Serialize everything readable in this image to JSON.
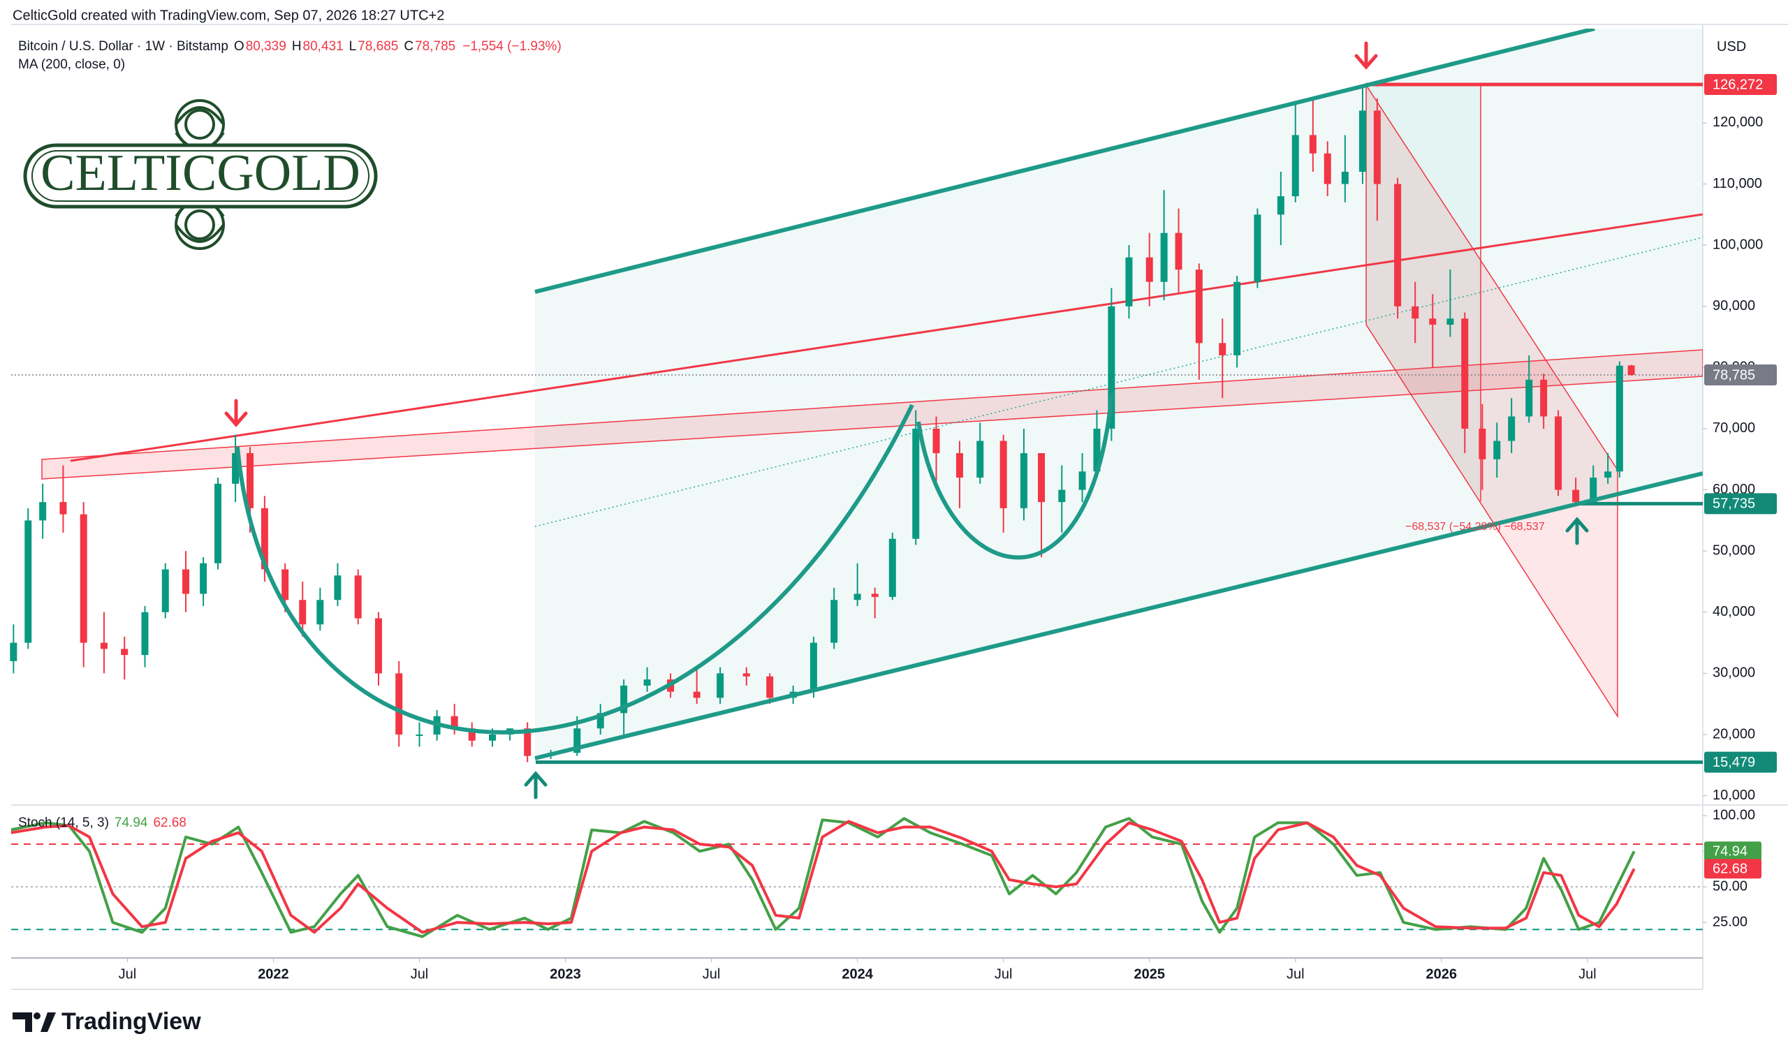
{
  "header": "CelticGold created with TradingView.com, Sep 07, 2026 18:27 UTC+2",
  "logo": "CELTICGOLD",
  "footer": "TradingView",
  "chart_data": [
    {
      "type": "candlestick",
      "symbol_legend": "Bitcoin / U.S. Dollar · 1W · Bitstamp",
      "ohlc_legend": [
        {
          "key": "O",
          "value": "80,339"
        },
        {
          "key": "H",
          "value": "80,431"
        },
        {
          "key": "L",
          "value": "78,685"
        },
        {
          "key": "C",
          "value": "78,785"
        },
        {
          "key": "",
          "value": "−1,554 (−1.93%)"
        }
      ],
      "ma_legend": "MA (200, close, 0)",
      "currency": "USD",
      "annotation": "−68,537 (−54.28%) −68,537",
      "up_color": "#089981",
      "down_color": "#f23645",
      "x": [
        2021.11,
        2021.16,
        2021.21,
        2021.28,
        2021.35,
        2021.42,
        2021.49,
        2021.56,
        2021.63,
        2021.7,
        2021.76,
        2021.81,
        2021.87,
        2021.92,
        2021.97,
        2022.04,
        2022.1,
        2022.16,
        2022.22,
        2022.29,
        2022.36,
        2022.43,
        2022.5,
        2022.56,
        2022.62,
        2022.68,
        2022.75,
        2022.81,
        2022.87,
        2022.95,
        2023.04,
        2023.12,
        2023.2,
        2023.28,
        2023.36,
        2023.45,
        2023.53,
        2023.62,
        2023.7,
        2023.78,
        2023.85,
        2023.92,
        2024.0,
        2024.06,
        2024.12,
        2024.2,
        2024.27,
        2024.35,
        2024.42,
        2024.5,
        2024.57,
        2024.63,
        2024.7,
        2024.77,
        2024.82,
        2024.87,
        2024.93,
        2025.0,
        2025.05,
        2025.1,
        2025.17,
        2025.25,
        2025.3,
        2025.37,
        2025.45,
        2025.5,
        2025.56,
        2025.61,
        2025.67,
        2025.73,
        2025.78,
        2025.85,
        2025.91,
        2025.97,
        2026.03,
        2026.08,
        2026.14,
        2026.19,
        2026.24,
        2026.3,
        2026.35,
        2026.4,
        2026.46,
        2026.52,
        2026.57,
        2026.61,
        2026.65
      ],
      "open": [
        32000,
        35000,
        55000,
        58000,
        56000,
        35000,
        34000,
        33000,
        40000,
        47000,
        43000,
        48000,
        61000,
        66000,
        57000,
        47000,
        42000,
        38000,
        42000,
        46000,
        39000,
        30000,
        20000,
        20000,
        23000,
        21000,
        19000,
        20000,
        21000,
        16500,
        17000,
        21000,
        23500,
        28000,
        29000,
        27000,
        26000,
        30000,
        29500,
        26000,
        27000,
        35000,
        42000,
        43000,
        42500,
        52000,
        70000,
        66000,
        62000,
        68000,
        57000,
        66000,
        58000,
        60000,
        63000,
        70000,
        90000,
        98000,
        94000,
        102000,
        96000,
        84000,
        82000,
        94000,
        105000,
        108000,
        118000,
        115000,
        110000,
        112000,
        122000,
        110000,
        90000,
        88000,
        87000,
        88000,
        70000,
        65000,
        68000,
        72000,
        78000,
        72000,
        60000,
        58000,
        62000,
        63000,
        80339
      ],
      "high": [
        38000,
        57000,
        61000,
        64000,
        58000,
        40000,
        36000,
        41000,
        48000,
        50000,
        49000,
        62000,
        69000,
        67000,
        59000,
        48000,
        45000,
        44000,
        48000,
        47000,
        40000,
        32000,
        22000,
        24000,
        25000,
        22000,
        21000,
        21000,
        22000,
        17500,
        23000,
        25000,
        29000,
        31000,
        30000,
        31000,
        31000,
        31000,
        30000,
        28000,
        36000,
        44000,
        48000,
        44000,
        53000,
        73000,
        72000,
        68000,
        71000,
        69000,
        70000,
        66000,
        64000,
        66000,
        73000,
        93000,
        100000,
        102000,
        109000,
        106000,
        97000,
        88000,
        95000,
        106000,
        112000,
        123000,
        124000,
        117000,
        118000,
        126272,
        124000,
        111000,
        94000,
        92000,
        96000,
        89000,
        74000,
        71000,
        75000,
        82000,
        79000,
        73000,
        62000,
        64000,
        66000,
        81000,
        80431
      ],
      "low": [
        30000,
        34000,
        52000,
        53000,
        31000,
        30000,
        29000,
        31000,
        39000,
        40000,
        41000,
        47000,
        58000,
        53000,
        45000,
        40000,
        36000,
        37000,
        41000,
        38000,
        28000,
        18000,
        18000,
        19000,
        20000,
        18000,
        18000,
        19000,
        15479,
        16000,
        16500,
        20000,
        20000,
        27000,
        26000,
        25000,
        25000,
        28000,
        25000,
        25000,
        26000,
        34000,
        41000,
        39000,
        42000,
        51000,
        60000,
        57000,
        61000,
        53000,
        55000,
        49000,
        53000,
        58000,
        62000,
        68000,
        88000,
        90000,
        91000,
        92000,
        78000,
        75000,
        80000,
        93000,
        100000,
        107000,
        112000,
        108000,
        107000,
        110000,
        104000,
        88000,
        84000,
        80000,
        85000,
        66000,
        60000,
        62000,
        66000,
        71000,
        70000,
        59000,
        57735,
        57800,
        61000,
        62000,
        78685
      ],
      "close": [
        35000,
        55000,
        58000,
        56000,
        35000,
        34000,
        33000,
        40000,
        47000,
        43000,
        48000,
        61000,
        66000,
        57000,
        47000,
        42000,
        38000,
        42000,
        46000,
        39000,
        30000,
        20000,
        20000,
        23000,
        21000,
        19000,
        20000,
        21000,
        16500,
        17000,
        21000,
        23500,
        28000,
        29000,
        27000,
        26000,
        30000,
        29500,
        26000,
        27000,
        35000,
        42000,
        43000,
        42500,
        52000,
        70000,
        66000,
        62000,
        68000,
        57000,
        66000,
        58000,
        60000,
        63000,
        70000,
        90000,
        98000,
        94000,
        102000,
        96000,
        84000,
        82000,
        94000,
        105000,
        108000,
        118000,
        115000,
        110000,
        112000,
        122000,
        110000,
        90000,
        88000,
        87000,
        88000,
        70000,
        65000,
        68000,
        72000,
        78000,
        72000,
        60000,
        58000,
        62000,
        63000,
        80300,
        78785
      ],
      "xlim": [
        2021.102,
        2026.895
      ],
      "xticks": [
        {
          "value": 2021.5,
          "label": "Jul"
        },
        {
          "value": 2022,
          "label": "2022"
        },
        {
          "value": 2022.5,
          "label": "Jul"
        },
        {
          "value": 2023,
          "label": "2023"
        },
        {
          "value": 2023.5,
          "label": "Jul"
        },
        {
          "value": 2024,
          "label": "2024"
        },
        {
          "value": 2024.5,
          "label": "Jul"
        },
        {
          "value": 2025,
          "label": "2025"
        },
        {
          "value": 2025.5,
          "label": "Jul"
        },
        {
          "value": 2026,
          "label": "2026"
        },
        {
          "value": 2026.5,
          "label": "Jul"
        }
      ],
      "ylim": [
        8700,
        135400
      ],
      "yticks": [
        {
          "value": 10000,
          "label": "10,000"
        },
        {
          "value": 20000,
          "label": "20,000"
        },
        {
          "value": 30000,
          "label": "30,000"
        },
        {
          "value": 40000,
          "label": "40,000"
        },
        {
          "value": 50000,
          "label": "50,000"
        },
        {
          "value": 60000,
          "label": "60,000"
        },
        {
          "value": 70000,
          "label": "70,000"
        },
        {
          "value": 80000,
          "label": "80,000"
        },
        {
          "value": 90000,
          "label": "90,000"
        },
        {
          "value": 100000,
          "label": "100,000"
        },
        {
          "value": 110000,
          "label": "110,000"
        },
        {
          "value": 120000,
          "label": "120,000"
        }
      ],
      "levels": [
        {
          "value": 126272,
          "label": "126,272",
          "color": "#f23645"
        },
        {
          "value": 78785,
          "label": "78,785",
          "color": "#787b86"
        },
        {
          "value": 57735,
          "label": "57,735",
          "color": "#138a78"
        },
        {
          "value": 15479,
          "label": "15,479",
          "color": "#138a78"
        }
      ]
    },
    {
      "type": "line",
      "legend": "Stoch (14, 5, 3)",
      "x": [
        2021.1,
        2021.22,
        2021.3,
        2021.37,
        2021.45,
        2021.55,
        2021.63,
        2021.7,
        2021.79,
        2021.88,
        2021.96,
        2022.06,
        2022.14,
        2022.23,
        2022.29,
        2022.39,
        2022.51,
        2022.63,
        2022.74,
        2022.86,
        2022.94,
        2023.02,
        2023.09,
        2023.19,
        2023.27,
        2023.37,
        2023.46,
        2023.56,
        2023.64,
        2023.72,
        2023.8,
        2023.88,
        2023.97,
        2024.07,
        2024.16,
        2024.25,
        2024.36,
        2024.46,
        2024.52,
        2024.6,
        2024.68,
        2024.75,
        2024.85,
        2024.93,
        2025.01,
        2025.11,
        2025.18,
        2025.24,
        2025.3,
        2025.36,
        2025.44,
        2025.54,
        2025.63,
        2025.71,
        2025.79,
        2025.87,
        2025.98,
        2026.1,
        2026.22,
        2026.29,
        2026.35,
        2026.41,
        2026.47,
        2026.54,
        2026.6,
        2026.66
      ],
      "series": [
        {
          "color": "#43a047",
          "values": [
            90,
            95,
            93,
            75,
            25,
            18,
            35,
            85,
            80,
            92,
            60,
            18,
            22,
            45,
            58,
            22,
            15,
            30,
            20,
            28,
            20,
            28,
            90,
            88,
            96,
            88,
            75,
            80,
            55,
            20,
            35,
            97,
            95,
            85,
            98,
            88,
            80,
            72,
            45,
            58,
            45,
            60,
            92,
            98,
            85,
            80,
            40,
            18,
            35,
            85,
            95,
            95,
            80,
            58,
            60,
            25,
            20,
            22,
            20,
            35,
            70,
            48,
            20,
            25,
            50,
            74.94
          ]
        },
        {
          "color": "#f23645",
          "values": [
            88,
            92,
            93,
            85,
            45,
            22,
            25,
            70,
            82,
            88,
            75,
            30,
            18,
            35,
            52,
            35,
            18,
            25,
            24,
            25,
            24,
            25,
            75,
            88,
            92,
            90,
            80,
            78,
            65,
            30,
            28,
            85,
            96,
            88,
            92,
            92,
            84,
            75,
            55,
            52,
            50,
            52,
            80,
            95,
            90,
            82,
            55,
            25,
            28,
            70,
            90,
            95,
            85,
            65,
            58,
            35,
            22,
            21,
            21,
            28,
            60,
            58,
            30,
            22,
            38,
            62.68
          ]
        }
      ],
      "xlim": [
        2021.102,
        2026.895
      ],
      "ylim": [
        0,
        106
      ],
      "yticks": [
        {
          "value": 25,
          "label": "25.00"
        },
        {
          "value": 50,
          "label": "50.00"
        },
        {
          "value": 75,
          "label": "75.00"
        },
        {
          "value": 100,
          "label": "100.00"
        }
      ],
      "hlines": [
        {
          "value": 80,
          "color": "#f23645"
        },
        {
          "value": 50,
          "color": "#b2b5be"
        },
        {
          "value": 20,
          "color": "#089981"
        }
      ]
    }
  ]
}
